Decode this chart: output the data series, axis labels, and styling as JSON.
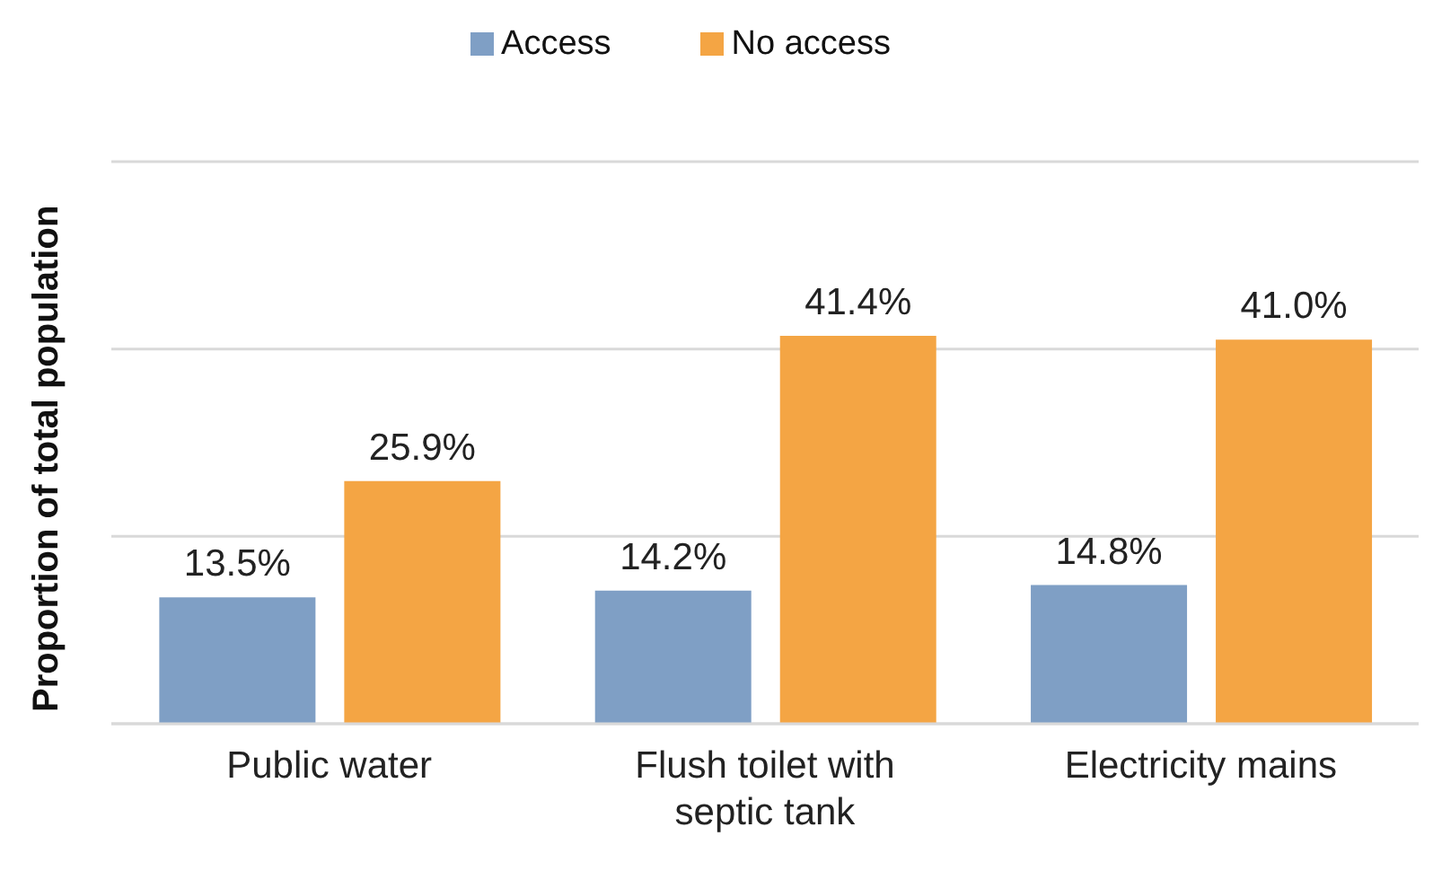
{
  "chart_data": {
    "type": "bar",
    "ylabel": "Proportion of total population",
    "categories": [
      "Public water",
      "Flush toilet with septic tank",
      "Electricity mains"
    ],
    "series": [
      {
        "name": "Access",
        "color": "#7f9fc5",
        "values": [
          13.5,
          14.2,
          14.8
        ],
        "value_labels": [
          "13.5%",
          "14.2%",
          "14.8%"
        ]
      },
      {
        "name": "No access",
        "color": "#f4a544",
        "values": [
          25.9,
          41.4,
          41.0
        ],
        "value_labels": [
          "25.9%",
          "41.4%",
          "41.0%"
        ]
      }
    ],
    "ylim": [
      0,
      60
    ],
    "yticks": [
      {
        "value": 0,
        "label": null
      },
      {
        "value": 20,
        "label": null
      },
      {
        "value": 40,
        "label": null
      },
      {
        "value": 60,
        "label": null
      }
    ],
    "grid": "y",
    "legend": "top",
    "tick_labels": "x"
  }
}
